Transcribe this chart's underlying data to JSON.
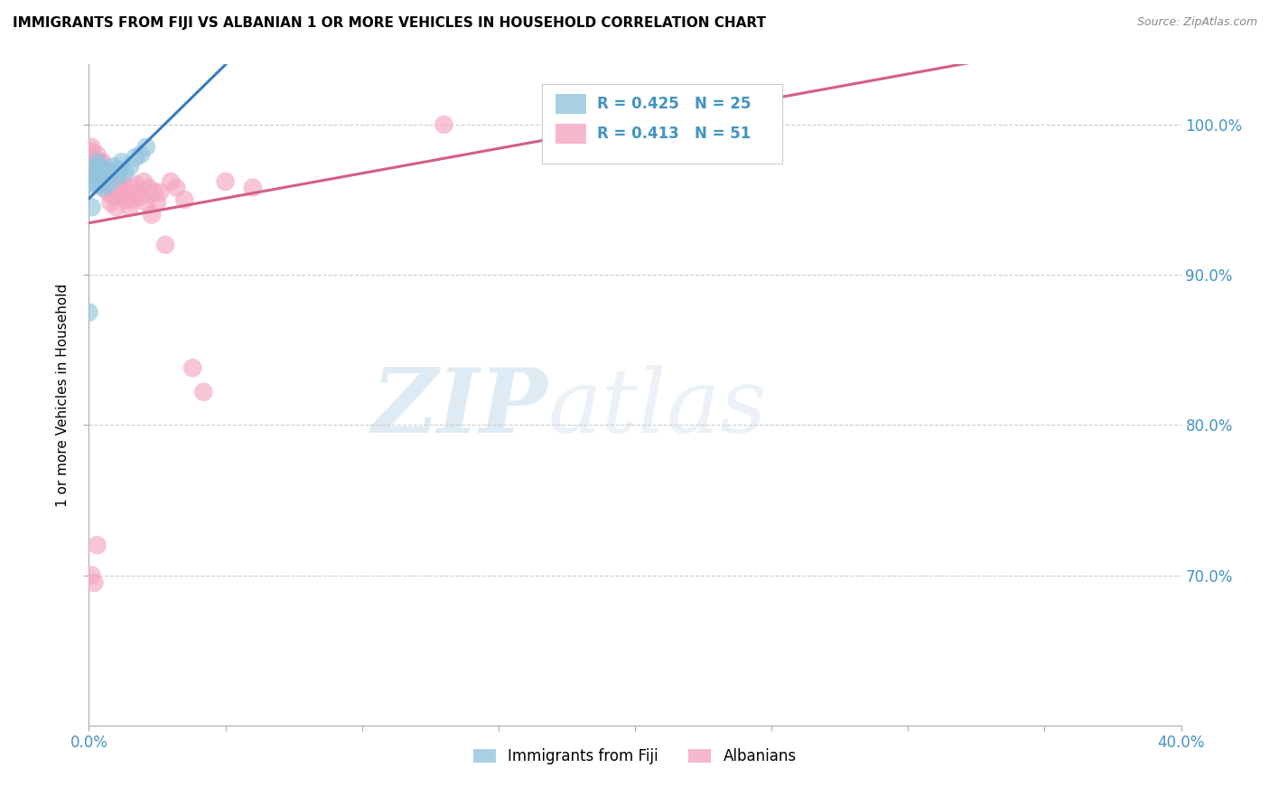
{
  "title": "IMMIGRANTS FROM FIJI VS ALBANIAN 1 OR MORE VEHICLES IN HOUSEHOLD CORRELATION CHART",
  "source": "Source: ZipAtlas.com",
  "ylabel": "1 or more Vehicles in Household",
  "xlim": [
    0.0,
    0.4
  ],
  "ylim": [
    0.6,
    1.04
  ],
  "yticks": [
    0.7,
    0.8,
    0.9,
    1.0
  ],
  "ytick_labels": [
    "70.0%",
    "80.0%",
    "90.0%",
    "100.0%"
  ],
  "xticks": [
    0.0,
    0.05,
    0.1,
    0.15,
    0.2,
    0.25,
    0.3,
    0.35,
    0.4
  ],
  "fiji_color": "#92c5de",
  "albanian_color": "#f4a6c0",
  "fiji_line_color": "#3a7bbf",
  "albanian_line_color": "#d45f82",
  "fiji_R": 0.425,
  "fiji_N": 25,
  "albanian_R": 0.413,
  "albanian_N": 51,
  "fiji_data_x": [
    0.001,
    0.002,
    0.002,
    0.003,
    0.003,
    0.004,
    0.004,
    0.005,
    0.005,
    0.006,
    0.006,
    0.007,
    0.008,
    0.009,
    0.01,
    0.011,
    0.012,
    0.013,
    0.015,
    0.017,
    0.019,
    0.021,
    0.0,
    0.001,
    0.003
  ],
  "fiji_data_y": [
    0.96,
    0.962,
    0.97,
    0.968,
    0.975,
    0.965,
    0.972,
    0.963,
    0.958,
    0.97,
    0.966,
    0.96,
    0.968,
    0.972,
    0.965,
    0.97,
    0.975,
    0.968,
    0.972,
    0.978,
    0.98,
    0.985,
    0.875,
    0.945,
    0.96
  ],
  "albanian_data_x": [
    0.001,
    0.001,
    0.002,
    0.002,
    0.003,
    0.003,
    0.003,
    0.004,
    0.004,
    0.005,
    0.005,
    0.006,
    0.006,
    0.006,
    0.007,
    0.007,
    0.008,
    0.008,
    0.009,
    0.009,
    0.01,
    0.01,
    0.011,
    0.012,
    0.013,
    0.014,
    0.015,
    0.015,
    0.016,
    0.017,
    0.018,
    0.019,
    0.02,
    0.021,
    0.022,
    0.023,
    0.024,
    0.025,
    0.026,
    0.028,
    0.03,
    0.032,
    0.035,
    0.038,
    0.042,
    0.05,
    0.06,
    0.13,
    0.001,
    0.002,
    0.003
  ],
  "albanian_data_y": [
    0.985,
    0.982,
    0.978,
    0.972,
    0.98,
    0.975,
    0.97,
    0.975,
    0.965,
    0.975,
    0.962,
    0.97,
    0.96,
    0.968,
    0.965,
    0.955,
    0.96,
    0.948,
    0.958,
    0.952,
    0.952,
    0.945,
    0.96,
    0.962,
    0.955,
    0.95,
    0.958,
    0.945,
    0.95,
    0.96,
    0.955,
    0.952,
    0.962,
    0.948,
    0.958,
    0.94,
    0.955,
    0.948,
    0.955,
    0.92,
    0.962,
    0.958,
    0.95,
    0.838,
    0.822,
    0.962,
    0.958,
    1.0,
    0.7,
    0.695,
    0.72
  ],
  "watermark_zip": "ZIP",
  "watermark_atlas": "atlas",
  "background_color": "#ffffff",
  "grid_color": "#cccccc",
  "axis_color": "#aaaaaa",
  "label_color": "#4393c3",
  "tick_color": "#4393c3"
}
